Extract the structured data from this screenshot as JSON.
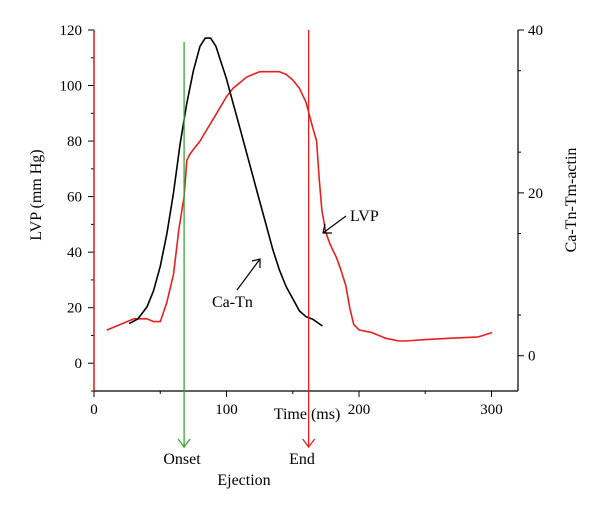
{
  "chart_data": {
    "type": "line",
    "xlabel": "Time (ms)",
    "ylabel_left": "LVP (mm Hg)",
    "ylabel_right": "Ca-Tn-Tm-actin",
    "xlim": [
      0,
      320
    ],
    "ylim_left": [
      -10,
      120
    ],
    "ylim_right": [
      -4.33,
      40
    ],
    "x_ticks": [
      0,
      100,
      200,
      300
    ],
    "y_left_ticks": [
      0,
      20,
      40,
      60,
      80,
      100,
      120
    ],
    "y_right_ticks": [
      0,
      20,
      40
    ],
    "grid": false,
    "series": [
      {
        "name": "LVP",
        "axis": "left",
        "color": "#e8201f",
        "x": [
          10,
          20,
          30,
          40,
          45,
          50,
          55,
          60,
          64,
          68,
          70,
          72,
          75,
          80,
          85,
          90,
          95,
          100,
          105,
          110,
          115,
          120,
          125,
          130,
          135,
          140,
          145,
          150,
          155,
          160,
          165,
          168,
          170,
          172,
          175,
          178,
          180,
          183,
          186,
          190,
          193,
          196,
          200,
          210,
          220,
          230,
          235,
          250,
          270,
          290,
          300
        ],
        "y": [
          12,
          14,
          16,
          16,
          15,
          15,
          22,
          32,
          48,
          60,
          73,
          75,
          77,
          80,
          84,
          88,
          92,
          96,
          99,
          101,
          103,
          104,
          105,
          105,
          105,
          105,
          104,
          102,
          99,
          94,
          85,
          80,
          66,
          55,
          47,
          43,
          41,
          38,
          34,
          28,
          20,
          14,
          12,
          11,
          9,
          8,
          8,
          8.5,
          9,
          9.5,
          11
        ]
      },
      {
        "name": "Ca-Tn",
        "axis": "right",
        "color": "#000000",
        "x": [
          27,
          33,
          40,
          45,
          50,
          55,
          60,
          65,
          70,
          75,
          80,
          84,
          88,
          92,
          96,
          100,
          105,
          110,
          115,
          120,
          125,
          130,
          135,
          140,
          145,
          150,
          155,
          160,
          165,
          172
        ],
        "y": [
          4,
          4.5,
          6,
          8,
          11,
          15,
          20,
          26,
          31,
          35,
          38,
          39,
          39,
          38,
          36,
          34,
          31,
          28,
          25,
          22,
          19,
          16,
          13,
          10.5,
          8.5,
          7,
          5.5,
          4.8,
          4.5,
          3.7
        ]
      }
    ],
    "markers": [
      {
        "name": "onset",
        "x": 68,
        "color": "#3aa637",
        "label": "Onset"
      },
      {
        "name": "end",
        "x": 162,
        "color": "#e8201f",
        "label": "End"
      }
    ],
    "zero_marker": {
      "x": 0,
      "color": "#e8201f"
    },
    "annotations": {
      "ejection": "Ejection",
      "lvp_label": "LVP",
      "catn_label": "Ca-Tn"
    }
  }
}
